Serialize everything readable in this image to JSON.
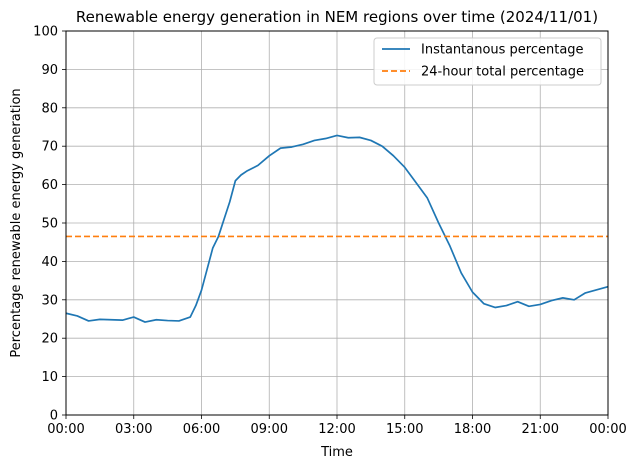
{
  "chart_data": {
    "type": "line",
    "title": "Renewable energy generation in NEM regions over time (2024/11/01)",
    "xlabel": "Time",
    "ylabel": "Percentage renewable energy generation",
    "xlim": [
      0,
      24
    ],
    "ylim": [
      0,
      100
    ],
    "x_ticks": [
      "00:00",
      "03:00",
      "06:00",
      "09:00",
      "12:00",
      "15:00",
      "18:00",
      "21:00",
      "00:00"
    ],
    "y_ticks": [
      0,
      10,
      20,
      30,
      40,
      50,
      60,
      70,
      80,
      90,
      100
    ],
    "grid": true,
    "legend_position": "top-right",
    "colors": {
      "instantaneous": "#1f77b4",
      "daily_total": "#ff7f0e"
    },
    "series": [
      {
        "name": "Instantanous percentage",
        "style": "solid",
        "x": [
          "00:00",
          "00:30",
          "01:00",
          "01:30",
          "02:00",
          "02:30",
          "03:00",
          "03:30",
          "04:00",
          "04:30",
          "05:00",
          "05:30",
          "05:45",
          "06:00",
          "06:15",
          "06:30",
          "06:45",
          "07:00",
          "07:15",
          "07:30",
          "07:45",
          "08:00",
          "08:30",
          "09:00",
          "09:30",
          "10:00",
          "10:30",
          "11:00",
          "11:30",
          "12:00",
          "12:30",
          "13:00",
          "13:30",
          "14:00",
          "14:30",
          "15:00",
          "15:30",
          "16:00",
          "16:30",
          "17:00",
          "17:30",
          "18:00",
          "18:30",
          "19:00",
          "19:30",
          "20:00",
          "20:30",
          "21:00",
          "21:30",
          "22:00",
          "22:30",
          "23:00",
          "23:30",
          "00:00"
        ],
        "values": [
          26.5,
          25.8,
          24.5,
          24.9,
          24.8,
          24.7,
          25.5,
          24.2,
          24.8,
          24.6,
          24.5,
          25.5,
          28.5,
          32.5,
          38,
          43.5,
          46.5,
          51,
          55.5,
          61,
          62.5,
          63.5,
          65,
          67.5,
          69.5,
          69.8,
          70.5,
          71.5,
          72,
          72.8,
          72.2,
          72.3,
          71.5,
          70,
          67.5,
          64.5,
          60.5,
          56.5,
          50,
          44,
          37,
          32,
          29,
          28,
          28.5,
          29.5,
          28.3,
          28.8,
          29.8,
          30.5,
          30,
          31.8,
          32.6,
          33.4
        ]
      },
      {
        "name": "24-hour total percentage",
        "style": "dashed",
        "x": [
          "00:00",
          "00:00"
        ],
        "values": [
          46.5,
          46.5
        ]
      }
    ]
  }
}
